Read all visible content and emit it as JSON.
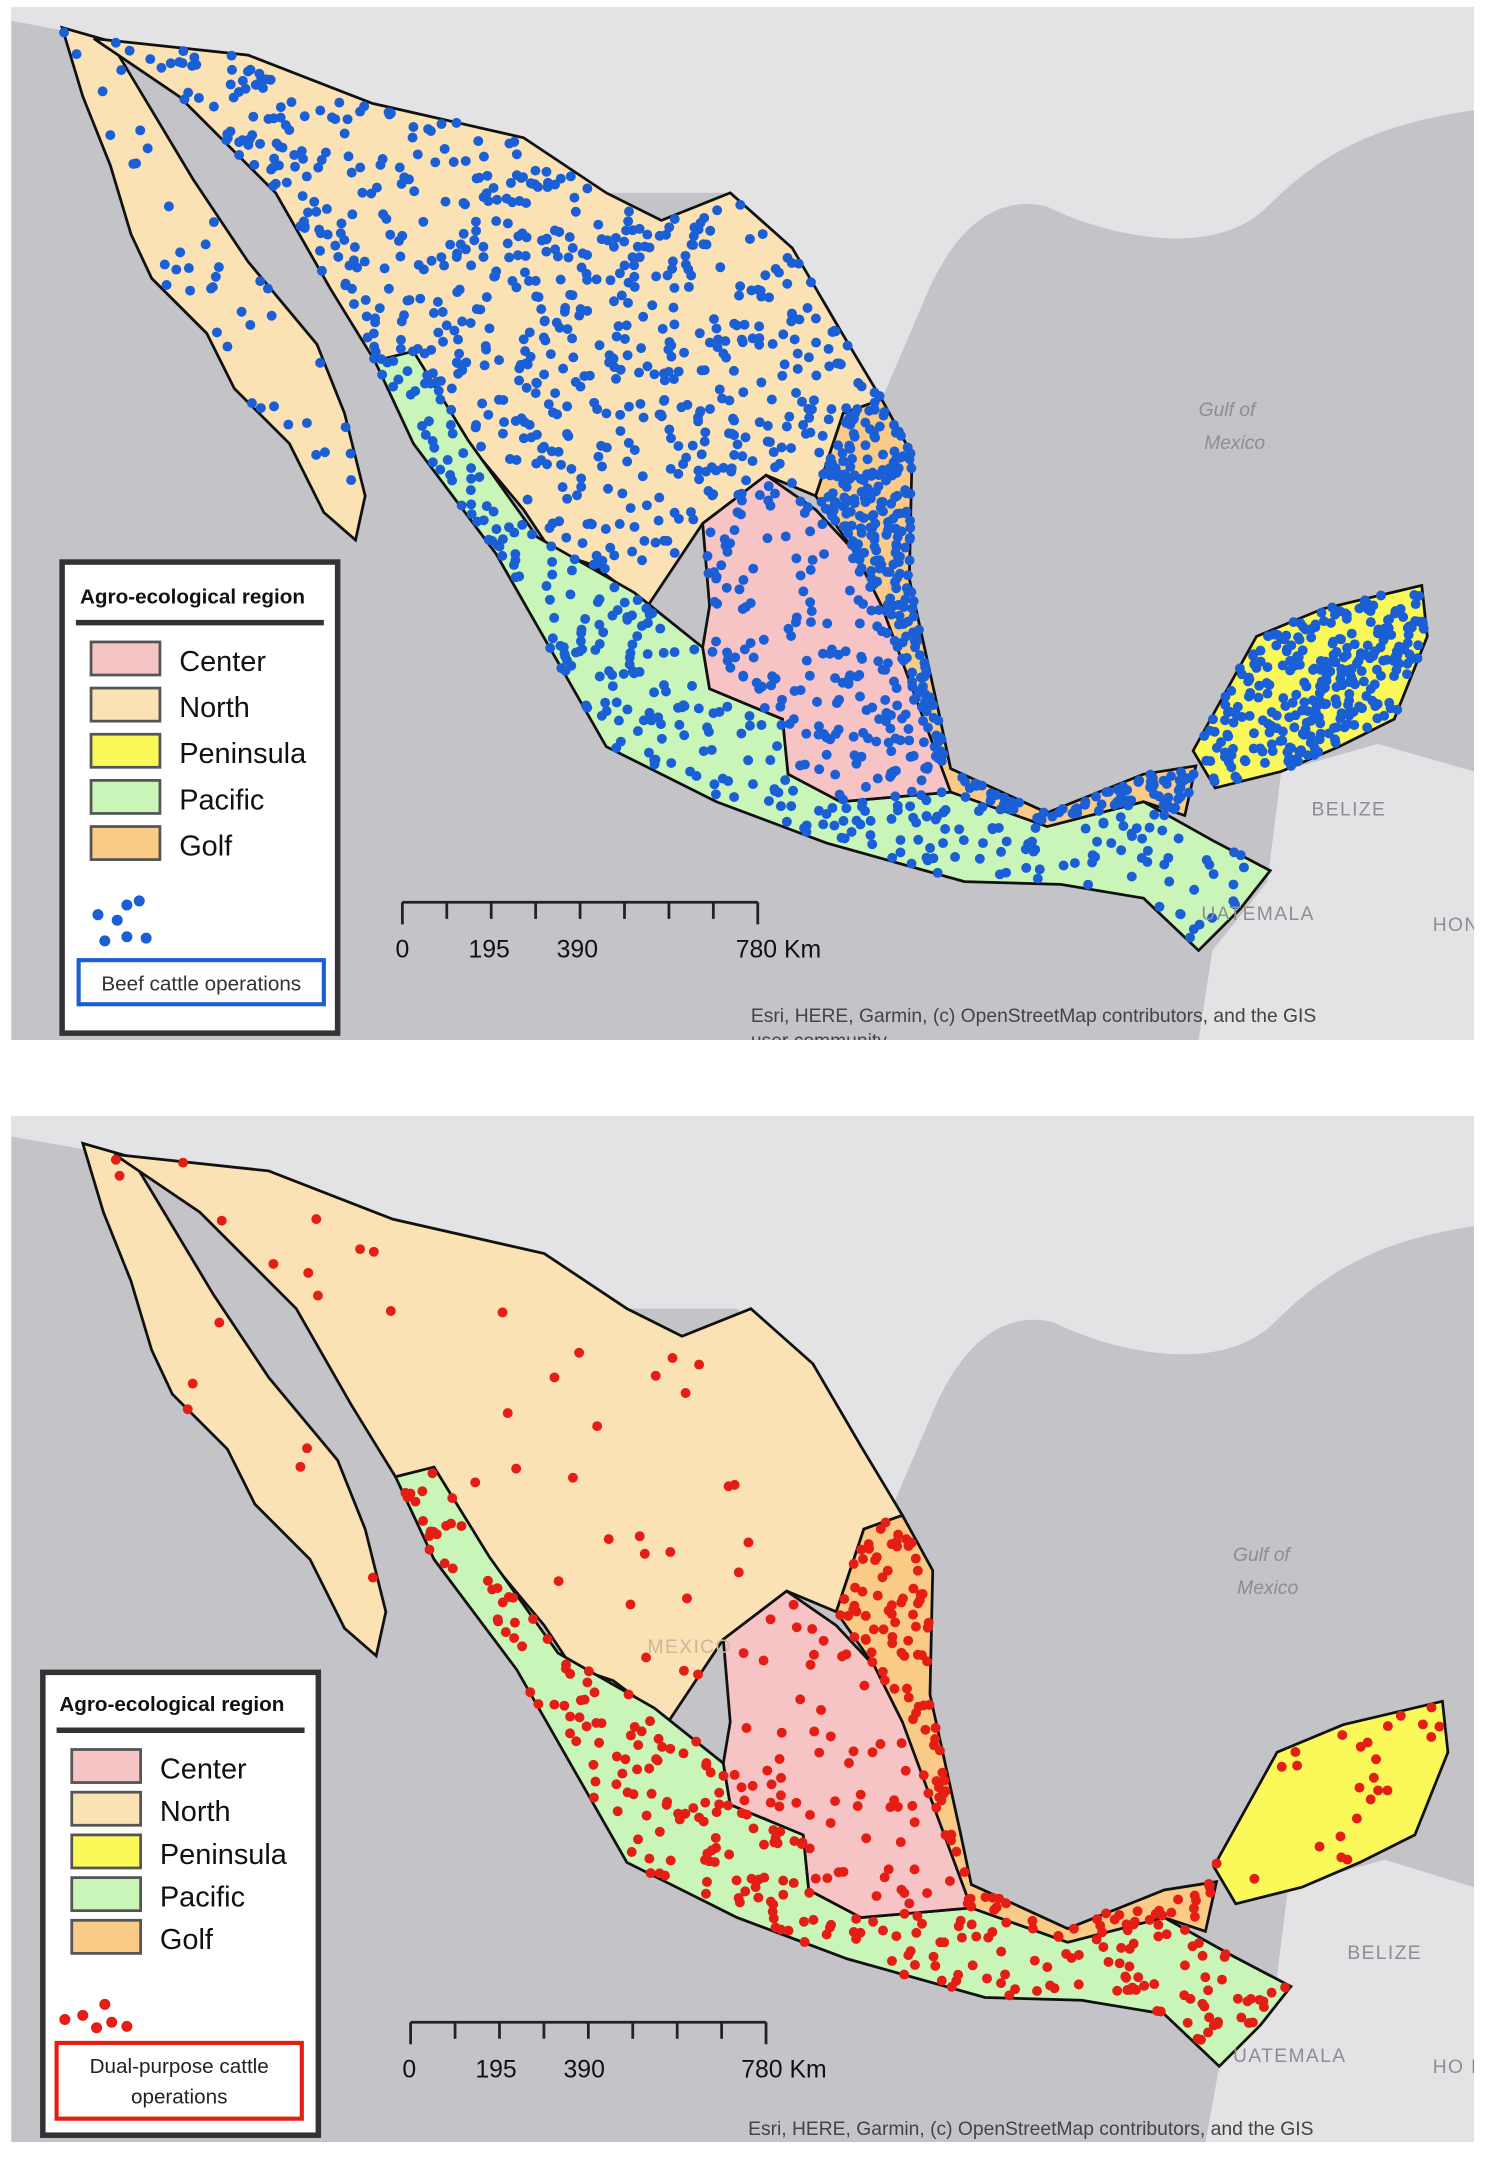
{
  "colors": {
    "center": "#f7c4c6",
    "north": "#fbe2b4",
    "peninsula": "#fbf85a",
    "pacific": "#c9f5b8",
    "golf": "#f9cb86",
    "sea": "#c3c3c8",
    "land_background": "#e3e3e5",
    "beef_points": "#1a5fd6",
    "dual_points": "#e41e14"
  },
  "maps": [
    {
      "legend": {
        "title": "Agro-ecological region",
        "regions": [
          "Center",
          "North",
          "Peninsula",
          "Pacific",
          "Golf"
        ],
        "points_label": "Beef cattle operations"
      },
      "scale_bar": {
        "ticks": [
          "0",
          "195",
          "390",
          "780 Km"
        ]
      },
      "place_labels": {
        "gulf1": "Gulf of",
        "gulf2": "Mexico",
        "belize": "BELIZE",
        "guatemala": "UATEMALA",
        "honduras": "HOND"
      },
      "attribution": "Esri, HERE, Garmin, (c) OpenStreetMap contributors, and the GIS",
      "attribution_line2": "user community"
    },
    {
      "legend": {
        "title": "Agro-ecological region",
        "regions": [
          "Center",
          "North",
          "Peninsula",
          "Pacific",
          "Golf"
        ],
        "points_label_1": "Dual-purpose cattle",
        "points_label_2": "operations"
      },
      "scale_bar": {
        "ticks": [
          "0",
          "195",
          "390",
          "780 Km"
        ]
      },
      "place_labels": {
        "gulf1": "Gulf of",
        "gulf2": "Mexico",
        "belize": "BELIZE",
        "guatemala": "UATEMALA",
        "honduras": "HO N",
        "mexico": "MEXICO"
      },
      "attribution": "Esri, HERE, Garmin, (c) OpenStreetMap contributors, and the GIS"
    }
  ]
}
